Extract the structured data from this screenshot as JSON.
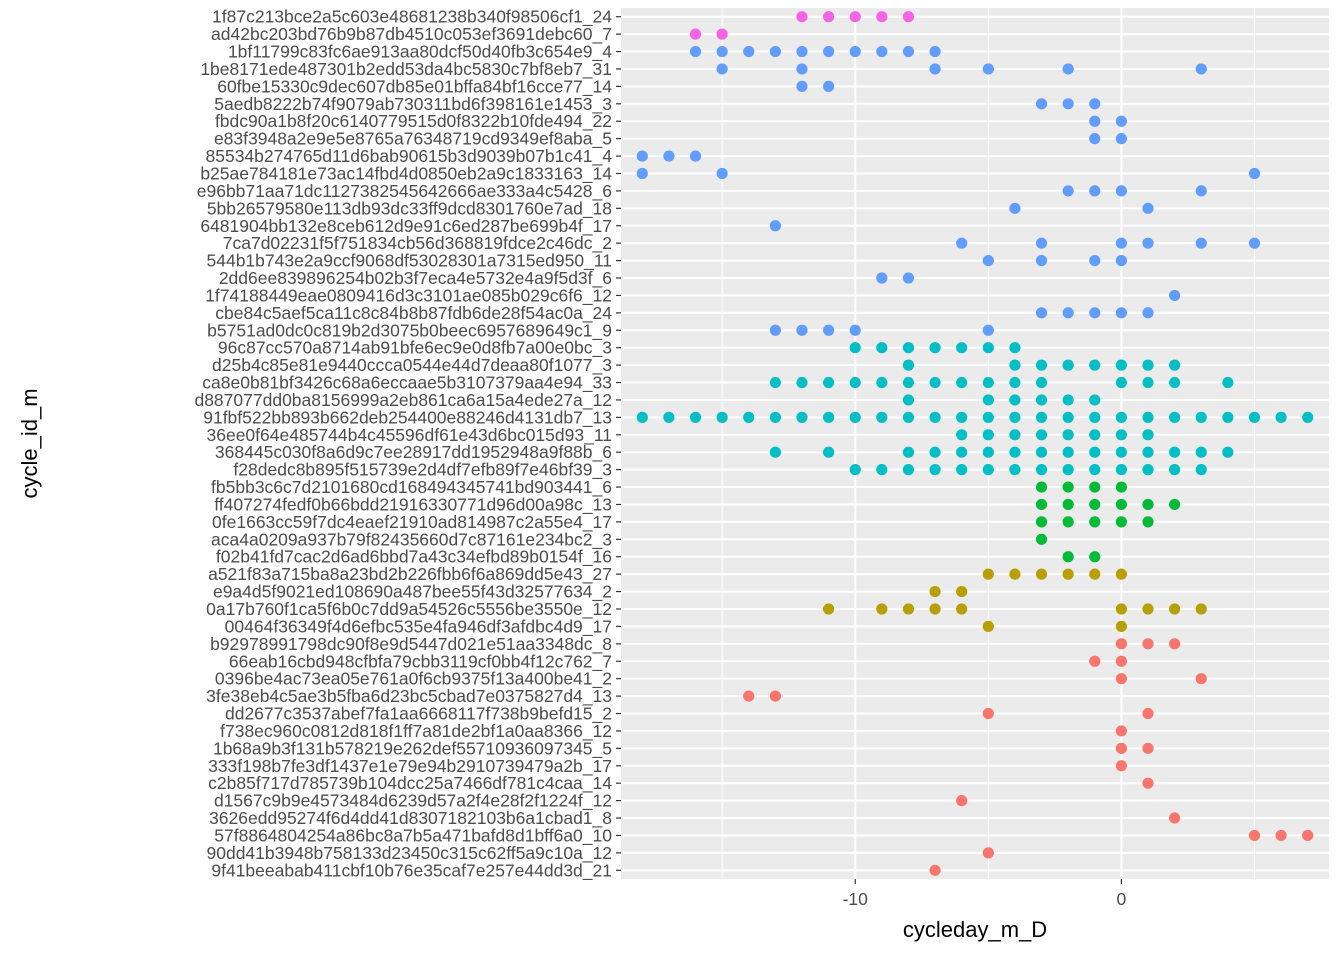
{
  "chart_data": {
    "type": "scatter",
    "title": "",
    "xlabel": "cycleday_m_D",
    "ylabel": "cycle_id_m",
    "xlim": [
      -18.8,
      7.8
    ],
    "x_ticks": [
      -10,
      0
    ],
    "x_tick_labels": [
      "-10",
      "0"
    ],
    "grid": true,
    "legend": "none",
    "colors": {
      "panel_bg": "#EBEBEB",
      "grid": "#FFFFFF",
      "axis_text": "#4D4D4D",
      "axis_title": "#000000"
    },
    "y_categories": [
      "1f87c213bce2a5c603e48681238b340f98506cf1_24",
      "ad42bc203bd76b9b87db4510c053ef3691debc60_7",
      "1bf11799c83fc6ae913aa80dcf50d40fb3c654e9_4",
      "1be8171ede487301b2edd53da4bc5830c7bf8eb7_31",
      "60fbe15330c9dec607db85e01bffa84bf16cce77_14",
      "5aedb8222b74f9079ab730311bd6f398161e1453_3",
      "fbdc90a1b8f20c6140779515d0f8322b10fde494_22",
      "e83f3948a2e9e5e8765a76348719cd9349ef8aba_5",
      "85534b274765d11d6bab90615b3d9039b07b1c41_4",
      "b25ae784181e73ac14fbd4d0850eb2a9c1833163_14",
      "e96bb71aa71dc1127382545642666ae333a4c5428_6",
      "5bb26579580e113db93dc33ff9dcd8301760e7ad_18",
      "6481904bb132e8ceb612d9e91c6ed287be699b4f_17",
      "7ca7d02231f5f751834cb56d368819fdce2c46dc_2",
      "544b1b743e2a9ccf9068df53028301a7315ed950_11",
      "2dd6ee839896254b02b3f7eca4e5732e4a9f5d3f_6",
      "1f74188449eae0809416d3c3101ae085b029c6f6_12",
      "cbe84c5aef5ca11c8c84b8b87fdb6de28f54ac0a_24",
      "b5751ad0dc0c819b2d3075b0beec6957689649c1_9",
      "96c87cc570a8714ab91bfe6ec9e0d8fb7a00e0bc_3",
      "d25b4c85e81e9440ccca0544e44d7deaa80f1077_3",
      "ca8e0b81bf3426c68a6eccaae5b3107379aa4e94_33",
      "d887077dd0ba8156999a2eb861ca6a15a4ede27a_12",
      "91fbf522bb893b662deb254400e88246d4131db7_13",
      "36ee0f64e485744b4c45596df61e43d6bc015d93_11",
      "368445c030f8a6d9c7ee28917dd1952948a9f88b_6",
      "f28dedc8b895f515739e2d4df7efb89f7e46bf39_3",
      "fb5bb3c6c7d2101680cd168494345741bd903441_6",
      "ff407274fedf0b66bdd21916330771d96d00a98c_13",
      "0fe1663cc59f7dc4eaef21910ad814987c2a55e4_17",
      "aca4a0209a937b79f82435660d7c87161e234bc2_3",
      "f02b41fd7cac2d6ad6bbd7a43c34efbd89b0154f_16",
      "a521f83a715ba8a23bd2b226fbb6f6a869dd5e43_27",
      "e9a4d5f9021ed108690a487bee55f43d32577634_2",
      "0a17b760f1ca5f6b0c7dd9a54526c5556be3550e_12",
      "00464f36349f4d6efbc535e4fa946df3afdbc4d9_17",
      "b92978991798dc90f8e9d5447d021e51aa3348dc_8",
      "66eab16cbd948cfbfa79cbb3119cf0bb4f12c762_7",
      "0396be4ac73ea05e761a0f6cb9375f13a400be41_2",
      "3fe38eb4c5ae3b5fba6d23bc5cbad7e0375827d4_13",
      "dd2677c3537abef7fa1aa6668117f738b9befd15_2",
      "f738ec960c0812d818f1ff7a81de2bf1a0aa8366_12",
      "1b68a9b3f131b578219e262def55710936097345_5",
      "333f198b7fe3df1437e1e79e94b2910739479a2b_17",
      "c2b85f717d785739b104dcc25a7466df781c4caa_14",
      "d1567c9b9e4573484d6239d57a2f4e28f2f1224f_12",
      "3626edd95274f6d4dd41d8307182103b6a1cbad1_8",
      "57f8864804254a86bc8a7b5a471bafd8d1bff6a0_10",
      "90dd41b3948b758133d23450c315c62ff5a9c10a_12",
      "9f41beeabab411cbf10b76e35caf7e257e44dd3d_21"
    ],
    "series": [
      {
        "color": "#F564E3",
        "points": [
          {
            "y": "1f87c213bce2a5c603e48681238b340f98506cf1_24",
            "x": [
              -12,
              -11,
              -10,
              -9,
              -8
            ]
          },
          {
            "y": "ad42bc203bd76b9b87db4510c053ef3691debc60_7",
            "x": [
              -16,
              -15
            ]
          }
        ]
      },
      {
        "color": "#619CFF",
        "points": [
          {
            "y": "1bf11799c83fc6ae913aa80dcf50d40fb3c654e9_4",
            "x": [
              -16,
              -15,
              -14,
              -13,
              -12,
              -11,
              -10,
              -9,
              -8,
              -7
            ]
          },
          {
            "y": "1be8171ede487301b2edd53da4bc5830c7bf8eb7_31",
            "x": [
              -15,
              -12,
              -7,
              -5,
              -2,
              3
            ]
          },
          {
            "y": "60fbe15330c9dec607db85e01bffa84bf16cce77_14",
            "x": [
              -12,
              -11
            ]
          },
          {
            "y": "5aedb8222b74f9079ab730311bd6f398161e1453_3",
            "x": [
              -3,
              -2,
              -1
            ]
          },
          {
            "y": "fbdc90a1b8f20c6140779515d0f8322b10fde494_22",
            "x": [
              -1,
              0
            ]
          },
          {
            "y": "e83f3948a2e9e5e8765a76348719cd9349ef8aba_5",
            "x": [
              -1,
              0
            ]
          },
          {
            "y": "85534b274765d11d6bab90615b3d9039b07b1c41_4",
            "x": [
              -18,
              -17,
              -16
            ]
          },
          {
            "y": "b25ae784181e73ac14fbd4d0850eb2a9c1833163_14",
            "x": [
              -18,
              -15,
              5
            ]
          },
          {
            "y": "e96bb71aa71dc1127382545642666ae333a4c5428_6",
            "x": [
              -2,
              -1,
              0,
              3
            ]
          },
          {
            "y": "5bb26579580e113db93dc33ff9dcd8301760e7ad_18",
            "x": [
              -4,
              1
            ]
          },
          {
            "y": "6481904bb132e8ceb612d9e91c6ed287be699b4f_17",
            "x": [
              -13
            ]
          },
          {
            "y": "7ca7d02231f5f751834cb56d368819fdce2c46dc_2",
            "x": [
              -6,
              -3,
              0,
              1,
              3,
              5
            ]
          },
          {
            "y": "544b1b743e2a9ccf9068df53028301a7315ed950_11",
            "x": [
              -5,
              -3,
              -1,
              0
            ]
          },
          {
            "y": "2dd6ee839896254b02b3f7eca4e5732e4a9f5d3f_6",
            "x": [
              -9,
              -8
            ]
          },
          {
            "y": "1f74188449eae0809416d3c3101ae085b029c6f6_12",
            "x": [
              2
            ]
          },
          {
            "y": "cbe84c5aef5ca11c8c84b8b87fdb6de28f54ac0a_24",
            "x": [
              -3,
              -2,
              -1,
              0,
              1
            ]
          },
          {
            "y": "b5751ad0dc0c819b2d3075b0beec6957689649c1_9",
            "x": [
              -13,
              -12,
              -11,
              -10,
              -5
            ]
          }
        ]
      },
      {
        "color": "#00BFC4",
        "points": [
          {
            "y": "96c87cc570a8714ab91bfe6ec9e0d8fb7a00e0bc_3",
            "x": [
              -10,
              -9,
              -8,
              -7,
              -6,
              -5,
              -4
            ]
          },
          {
            "y": "d25b4c85e81e9440ccca0544e44d7deaa80f1077_3",
            "x": [
              -8,
              -4,
              -3,
              -2,
              -1,
              0,
              1,
              2
            ]
          },
          {
            "y": "ca8e0b81bf3426c68a6eccaae5b3107379aa4e94_33",
            "x": [
              -13,
              -12,
              -11,
              -10,
              -9,
              -8,
              -7,
              -6,
              -5,
              -4,
              -3,
              0,
              1,
              2,
              4
            ]
          },
          {
            "y": "d887077dd0ba8156999a2eb861ca6a15a4ede27a_12",
            "x": [
              -8,
              -5,
              -4,
              -3,
              -2,
              -1
            ]
          },
          {
            "y": "91fbf522bb893b662deb254400e88246d4131db7_13",
            "x": [
              -18,
              -17,
              -16,
              -15,
              -14,
              -13,
              -12,
              -11,
              -10,
              -9,
              -8,
              -7,
              -6,
              -5,
              -4,
              -3,
              -2,
              -1,
              0,
              1,
              2,
              3,
              4,
              5,
              6,
              7
            ]
          },
          {
            "y": "36ee0f64e485744b4c45596df61e43d6bc015d93_11",
            "x": [
              -6,
              -5,
              -4,
              -3,
              -2,
              -1,
              0,
              1
            ]
          },
          {
            "y": "368445c030f8a6d9c7ee28917dd1952948a9f88b_6",
            "x": [
              -13,
              -11,
              -8,
              -7,
              -6,
              -5,
              -4,
              -3,
              -2,
              -1,
              0,
              1,
              2,
              3,
              4
            ]
          },
          {
            "y": "f28dedc8b895f515739e2d4df7efb89f7e46bf39_3",
            "x": [
              -10,
              -9,
              -8,
              -7,
              -6,
              -5,
              -4,
              -3,
              -2,
              -1,
              0,
              1,
              2,
              3
            ]
          }
        ]
      },
      {
        "color": "#00BA38",
        "points": [
          {
            "y": "fb5bb3c6c7d2101680cd168494345741bd903441_6",
            "x": [
              -3,
              -2,
              -1,
              0
            ]
          },
          {
            "y": "ff407274fedf0b66bdd21916330771d96d00a98c_13",
            "x": [
              -3,
              -2,
              -1,
              0,
              1,
              2
            ]
          },
          {
            "y": "0fe1663cc59f7dc4eaef21910ad814987c2a55e4_17",
            "x": [
              -3,
              -2,
              -1,
              0,
              1
            ]
          },
          {
            "y": "aca4a0209a937b79f82435660d7c87161e234bc2_3",
            "x": [
              -3
            ]
          },
          {
            "y": "f02b41fd7cac2d6ad6bbd7a43c34efbd89b0154f_16",
            "x": [
              -2,
              -1
            ]
          }
        ]
      },
      {
        "color": "#B79F00",
        "points": [
          {
            "y": "a521f83a715ba8a23bd2b226fbb6f6a869dd5e43_27",
            "x": [
              -5,
              -4,
              -3,
              -2,
              -1,
              0
            ]
          },
          {
            "y": "e9a4d5f9021ed108690a487bee55f43d32577634_2",
            "x": [
              -7,
              -6
            ]
          },
          {
            "y": "0a17b760f1ca5f6b0c7dd9a54526c5556be3550e_12",
            "x": [
              -11,
              -9,
              -8,
              -7,
              -6,
              0,
              1,
              2,
              3
            ]
          },
          {
            "y": "00464f36349f4d6efbc535e4fa946df3afdbc4d9_17",
            "x": [
              -5,
              0
            ]
          }
        ]
      },
      {
        "color": "#F8766D",
        "points": [
          {
            "y": "b92978991798dc90f8e9d5447d021e51aa3348dc_8",
            "x": [
              0,
              1,
              2
            ]
          },
          {
            "y": "66eab16cbd948cfbfa79cbb3119cf0bb4f12c762_7",
            "x": [
              -1,
              0
            ]
          },
          {
            "y": "0396be4ac73ea05e761a0f6cb9375f13a400be41_2",
            "x": [
              0,
              3
            ]
          },
          {
            "y": "3fe38eb4c5ae3b5fba6d23bc5cbad7e0375827d4_13",
            "x": [
              -14,
              -13
            ]
          },
          {
            "y": "dd2677c3537abef7fa1aa6668117f738b9befd15_2",
            "x": [
              -5,
              1
            ]
          },
          {
            "y": "f738ec960c0812d818f1ff7a81de2bf1a0aa8366_12",
            "x": [
              0
            ]
          },
          {
            "y": "1b68a9b3f131b578219e262def55710936097345_5",
            "x": [
              0,
              1
            ]
          },
          {
            "y": "333f198b7fe3df1437e1e79e94b2910739479a2b_17",
            "x": [
              0
            ]
          },
          {
            "y": "c2b85f717d785739b104dcc25a7466df781c4caa_14",
            "x": [
              1
            ]
          },
          {
            "y": "d1567c9b9e4573484d6239d57a2f4e28f2f1224f_12",
            "x": [
              -6
            ]
          },
          {
            "y": "3626edd95274f6d4dd41d8307182103b6a1cbad1_8",
            "x": [
              2
            ]
          },
          {
            "y": "57f8864804254a86bc8a7b5a471bafd8d1bff6a0_10",
            "x": [
              5,
              6,
              7
            ]
          },
          {
            "y": "90dd41b3948b758133d23450c315c62ff5a9c10a_12",
            "x": [
              -5
            ]
          },
          {
            "y": "9f41beeabab411cbf10b76e35caf7e257e44dd3d_21",
            "x": [
              -7
            ]
          }
        ]
      }
    ]
  }
}
